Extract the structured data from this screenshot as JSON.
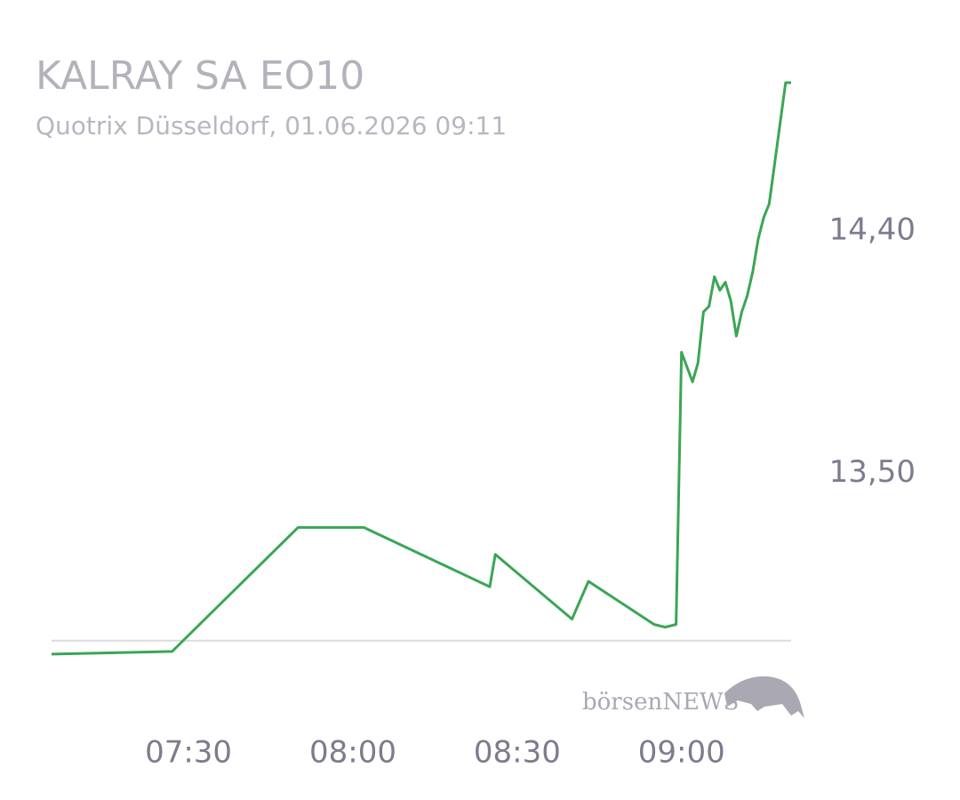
{
  "chart_data": {
    "type": "line",
    "title": "KALRAY SA EO10",
    "subtitle": "Quotrix Düsseldorf, 01.06.2026 09:11",
    "watermark": "börsenNEWS",
    "x": [
      "07:05",
      "07:27",
      "07:50",
      "08:02",
      "08:25",
      "08:26",
      "08:40",
      "08:43",
      "08:55",
      "08:57",
      "08:59",
      "09:00",
      "09:02",
      "09:03",
      "09:04",
      "09:05",
      "09:06",
      "09:07",
      "09:08",
      "09:09",
      "09:10",
      "09:11",
      "09:12",
      "09:13",
      "09:14",
      "09:15",
      "09:16",
      "09:17",
      "09:19",
      "09:20"
    ],
    "series": [
      {
        "color": "#3aa655",
        "values": [
          12.83,
          12.84,
          13.3,
          13.3,
          13.08,
          13.2,
          12.96,
          13.1,
          12.94,
          12.93,
          12.94,
          13.95,
          13.84,
          13.91,
          14.1,
          14.12,
          14.23,
          14.18,
          14.21,
          14.14,
          14.01,
          14.1,
          14.16,
          14.25,
          14.37,
          14.45,
          14.5,
          14.65,
          14.95,
          14.95
        ]
      }
    ],
    "baseline": 12.88,
    "xlim": [
      "07:05",
      "09:20"
    ],
    "xticks": [
      "07:30",
      "08:00",
      "08:30",
      "09:00"
    ],
    "ylim": [
      12.8,
      14.95
    ],
    "yticks": [
      {
        "value": 13.5,
        "label": "13,50"
      },
      {
        "value": 14.4,
        "label": "14,40"
      }
    ],
    "grid": false
  }
}
